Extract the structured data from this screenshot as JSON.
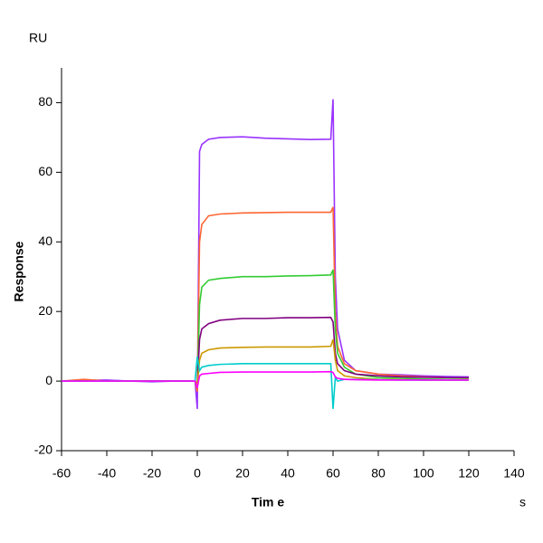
{
  "chart_data": {
    "type": "line",
    "y_unit": "RU",
    "y_label": "Response",
    "x_label": "Tim e",
    "x_unit": "s",
    "x": [
      -60,
      -50,
      -40,
      -30,
      -20,
      -10,
      -1,
      0,
      1,
      2,
      5,
      10,
      20,
      30,
      40,
      50,
      59,
      60,
      61,
      62,
      65,
      70,
      80,
      90,
      100,
      110,
      120
    ],
    "series": [
      {
        "color": "#9933ff",
        "values": [
          0,
          0.2,
          0.3,
          0,
          -0.2,
          0,
          0,
          -8,
          66,
          68,
          69.5,
          70,
          70.2,
          69.8,
          69.6,
          69.4,
          69.5,
          81,
          30,
          15,
          6,
          3,
          2,
          1.8,
          1.5,
          1.3,
          1.2
        ]
      },
      {
        "color": "#ff6633",
        "values": [
          0,
          0.5,
          0,
          0,
          0,
          0,
          0,
          -3,
          40,
          45,
          47.5,
          48,
          48.3,
          48.4,
          48.5,
          48.5,
          48.5,
          50,
          20,
          10,
          5,
          3,
          2,
          1.5,
          1.2,
          1,
          0.9
        ]
      },
      {
        "color": "#33cc33",
        "values": [
          0,
          0,
          0,
          0,
          0,
          0,
          0,
          -2,
          22,
          27,
          29,
          29.5,
          30,
          30,
          30.2,
          30.3,
          30.5,
          32,
          15,
          8,
          4,
          2,
          1,
          0.8,
          0.6,
          0.5,
          0.5
        ]
      },
      {
        "color": "#800080",
        "values": [
          0,
          0,
          0,
          0,
          0,
          0,
          0,
          -1,
          12,
          15,
          16.5,
          17.5,
          18,
          18,
          18.2,
          18.2,
          18.3,
          17,
          8,
          5,
          3,
          2,
          1.5,
          1.2,
          1.1,
          1,
          1
        ]
      },
      {
        "color": "#cc9900",
        "values": [
          0,
          0,
          0,
          0,
          0,
          0,
          0,
          -1,
          6,
          8,
          9,
          9.5,
          9.7,
          9.8,
          9.8,
          9.8,
          10,
          12,
          6,
          3,
          1.5,
          1,
          0.5,
          0.4,
          0.3,
          0.3,
          0.3
        ]
      },
      {
        "color": "#00cccc",
        "values": [
          0,
          0,
          0,
          0,
          0,
          0,
          0,
          7,
          3,
          4,
          4.5,
          4.8,
          5,
          5,
          5,
          5,
          5,
          -8,
          1,
          0,
          0.5,
          0.5,
          0.4,
          0.3,
          0.3,
          0.3,
          0.3
        ]
      },
      {
        "color": "#ff00ff",
        "values": [
          0,
          0,
          0,
          0,
          0,
          0,
          0,
          -2,
          1.5,
          2,
          2.2,
          2.5,
          2.6,
          2.6,
          2.6,
          2.6,
          2.7,
          2.5,
          1.2,
          0.8,
          0.5,
          0.4,
          0.3,
          0.3,
          0.3,
          0.3,
          0.3
        ]
      }
    ],
    "xlim": [
      -60,
      140
    ],
    "xticks": [
      -60,
      -40,
      -20,
      0,
      20,
      40,
      60,
      80,
      100,
      120,
      140
    ],
    "ylim": [
      -20,
      90
    ],
    "yticks": [
      -20,
      0,
      20,
      40,
      60,
      80
    ]
  }
}
